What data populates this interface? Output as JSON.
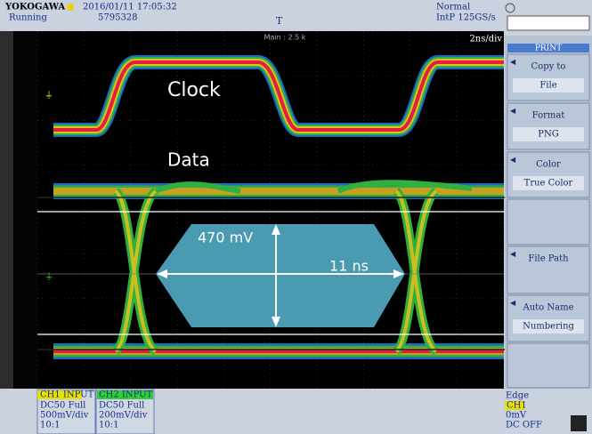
{
  "header": {
    "brand": "YOKOGAWA",
    "datetime": "2016/01/11 17:05:32",
    "state": "Running",
    "count": "5795328",
    "mode": "Normal",
    "sample_rate": "IntP  125GS/s",
    "record": "Main : 2.5 k",
    "time_div": "2ns/div"
  },
  "annotations": {
    "clock": "Clock",
    "data": "Data",
    "eye_height": "470 mV",
    "eye_width": "11 ns"
  },
  "menu": {
    "title": "PRINT",
    "items": [
      {
        "label": "Copy to",
        "value": "File"
      },
      {
        "label": "Format",
        "value": "PNG"
      },
      {
        "label": "Color",
        "value": "True Color"
      },
      {},
      {
        "label": "File Path"
      },
      {
        "label": "Auto Name",
        "value": "Numbering"
      },
      {}
    ]
  },
  "channels": [
    {
      "title": "CH1 INPUT",
      "coupling": "DC50 Full",
      "scale": "500mV/div",
      "probe": "10:1"
    },
    {
      "title": "CH2 INPUT",
      "coupling": "DC50 Full",
      "scale": "200mV/div",
      "probe": "10:1"
    }
  ],
  "trigger": {
    "type": "Edge",
    "source": "CH1",
    "level": "0mV",
    "coupling": "DC OFF"
  }
}
